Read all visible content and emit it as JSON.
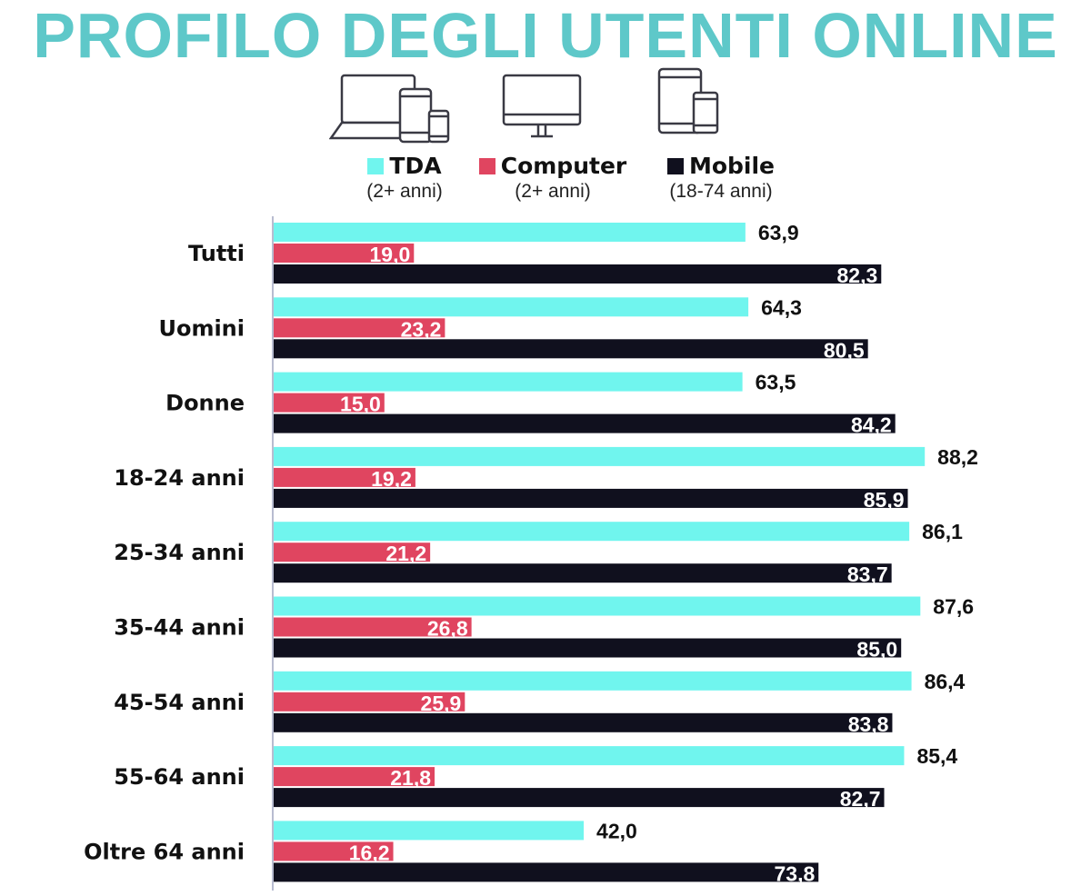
{
  "title": "PROFILO DEGLI UTENTI ONLINE",
  "icons": [
    "laptop-tablet-phone-icon",
    "desktop-monitor-icon",
    "tablet-phone-icon"
  ],
  "legend": [
    {
      "name": "TDA",
      "sub": "(2+ anni)",
      "color": "#70f5ee"
    },
    {
      "name": "Computer",
      "sub": "(2+ anni)",
      "color": "#e04560"
    },
    {
      "name": "Mobile",
      "sub": "(18-74 anni)",
      "color": "#10101e"
    }
  ],
  "chart_data": {
    "type": "bar",
    "orientation": "horizontal",
    "title": "PROFILO DEGLI UTENTI ONLINE",
    "categories": [
      "Tutti",
      "Uomini",
      "Donne",
      "18-24 anni",
      "25-34 anni",
      "35-44 anni",
      "45-54 anni",
      "55-64 anni",
      "Oltre 64 anni"
    ],
    "series": [
      {
        "name": "TDA",
        "values": [
          63.9,
          64.3,
          63.5,
          88.2,
          86.1,
          87.6,
          86.4,
          85.4,
          42.0
        ],
        "labels": [
          "63,9",
          "64,3",
          "63,5",
          "88,2",
          "86,1",
          "87,6",
          "86,4",
          "85,4",
          "42,0"
        ],
        "color": "#70f5ee",
        "label_position": "outside"
      },
      {
        "name": "Computer",
        "values": [
          19.0,
          23.2,
          15.0,
          19.2,
          21.2,
          26.8,
          25.9,
          21.8,
          16.2
        ],
        "labels": [
          "19,0",
          "23,2",
          "15,0",
          "19,2",
          "21,2",
          "26,8",
          "25,9",
          "21,8",
          "16,2"
        ],
        "color": "#e04560",
        "label_position": "inside"
      },
      {
        "name": "Mobile",
        "values": [
          82.3,
          80.5,
          84.2,
          85.9,
          83.7,
          85.0,
          83.8,
          82.7,
          73.8
        ],
        "labels": [
          "82,3",
          "80,5",
          "84,2",
          "85,9",
          "83,7",
          "85,0",
          "83,8",
          "82,7",
          "73,8"
        ],
        "color": "#10101e",
        "label_position": "inside"
      }
    ],
    "xlim": [
      0,
      100
    ],
    "grid": false,
    "legend_position": "top"
  }
}
